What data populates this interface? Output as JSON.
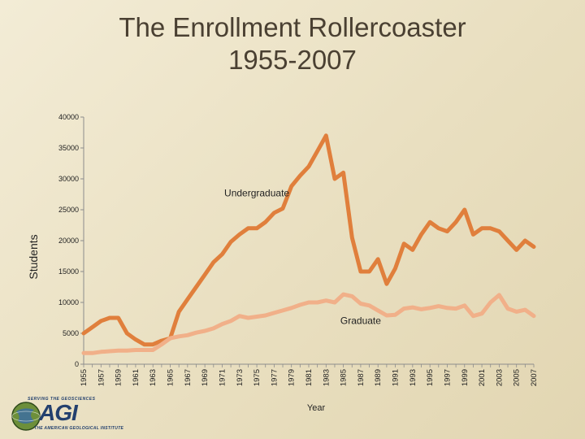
{
  "title_line1": "The Enrollment Rollercoaster",
  "title_line2": "1955-2007",
  "logo": {
    "tagline": "SERVING THE GEOSCIENCES",
    "name": "AGI",
    "subtitle": "THE AMERICAN GEOLOGICAL INSTITUTE"
  },
  "colors": {
    "undergraduate": "#e07f3c",
    "graduate": "#f1b089",
    "axis": "#8c8c8c"
  },
  "chart_data": {
    "type": "line",
    "xlabel": "Year",
    "ylabel": "Students",
    "ylim": [
      0,
      40000
    ],
    "yticks": [
      0,
      5000,
      10000,
      15000,
      20000,
      25000,
      30000,
      35000,
      40000
    ],
    "xticks": [
      "1955",
      "1957",
      "1959",
      "1961",
      "1963",
      "1965",
      "1967",
      "1969",
      "1971",
      "1973",
      "1975",
      "1977",
      "1979",
      "1981",
      "1983",
      "1985",
      "1987",
      "1989",
      "1991",
      "1993",
      "1995",
      "1997",
      "1999",
      "2001",
      "2003",
      "2005",
      "2007"
    ],
    "x": [
      1955,
      1956,
      1957,
      1958,
      1959,
      1960,
      1961,
      1962,
      1963,
      1964,
      1965,
      1966,
      1967,
      1968,
      1969,
      1970,
      1971,
      1972,
      1973,
      1974,
      1975,
      1976,
      1977,
      1978,
      1979,
      1980,
      1981,
      1982,
      1983,
      1984,
      1985,
      1986,
      1987,
      1988,
      1989,
      1990,
      1991,
      1992,
      1993,
      1994,
      1995,
      1996,
      1997,
      1998,
      1999,
      2000,
      2001,
      2002,
      2003,
      2004,
      2005,
      2006,
      2007
    ],
    "grid": false,
    "series": [
      {
        "name": "Undergraduate",
        "values": [
          5000,
          6000,
          7000,
          7500,
          7500,
          5000,
          4000,
          3200,
          3200,
          3800,
          4200,
          8500,
          10500,
          12500,
          14500,
          16500,
          17800,
          19800,
          21000,
          22000,
          22000,
          23000,
          24500,
          25200,
          28800,
          30500,
          32000,
          34500,
          37000,
          30000,
          31000,
          20500,
          15000,
          15000,
          17000,
          13000,
          15500,
          19500,
          18500,
          21000,
          23000,
          22000,
          21500,
          23000,
          25000,
          21000,
          22000,
          22000,
          21500,
          20000,
          18500,
          20000,
          19000
        ],
        "label_year": 1975,
        "label_value": 27200
      },
      {
        "name": "Graduate",
        "values": [
          1800,
          1800,
          2000,
          2100,
          2200,
          2200,
          2300,
          2300,
          2300,
          3200,
          4200,
          4500,
          4700,
          5100,
          5400,
          5800,
          6500,
          7000,
          7800,
          7500,
          7700,
          7900,
          8300,
          8700,
          9100,
          9600,
          10000,
          10000,
          10300,
          10000,
          11300,
          11000,
          9800,
          9500,
          8700,
          7900,
          8000,
          9000,
          9200,
          8900,
          9100,
          9400,
          9100,
          9000,
          9500,
          7800,
          8200,
          10000,
          11200,
          9000,
          8500,
          8800,
          7800
        ],
        "label_year": 1987,
        "label_value": 6500
      }
    ]
  }
}
